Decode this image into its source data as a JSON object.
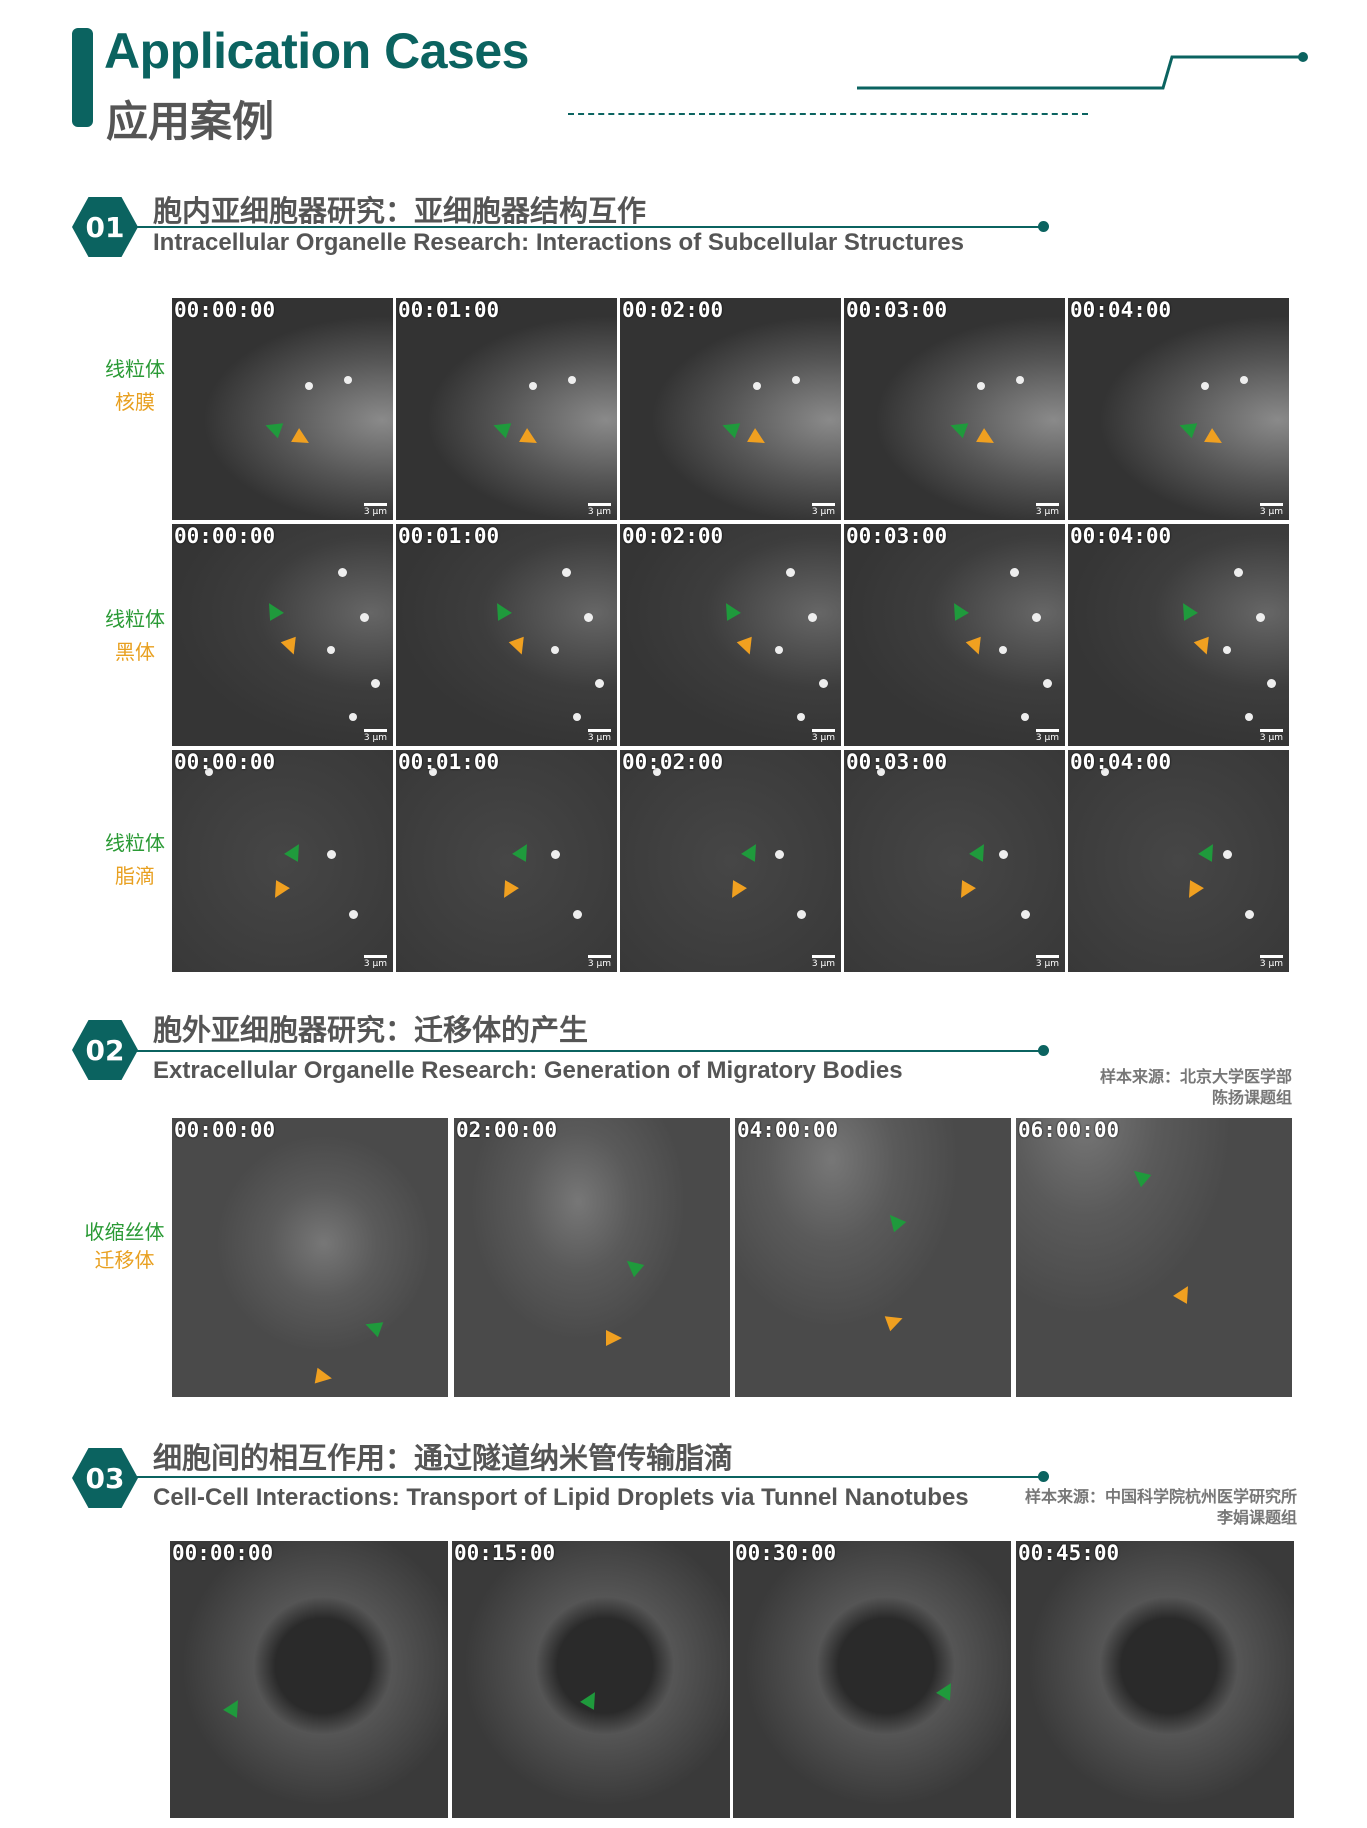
{
  "header": {
    "title_en": "Application Cases",
    "title_cn": "应用案例"
  },
  "colors": {
    "brand": "#0b6360",
    "green_label": "#2a9a35",
    "orange_label": "#e8a020",
    "green_arrow": "#1f9a3c",
    "orange_arrow": "#f0a020"
  },
  "sections": [
    {
      "num": "01",
      "title_cn": "胞内亚细胞器研究：亚细胞器结构互作",
      "title_en": "Intracellular Organelle Research: Interactions of Subcellular Structures",
      "times": [
        "00:00:00",
        "00:01:00",
        "00:02:00",
        "00:03:00",
        "00:04:00"
      ],
      "scale": "3 μm",
      "rows": [
        {
          "green": "线粒体",
          "orange": "核膜"
        },
        {
          "green": "线粒体",
          "orange": "黑体"
        },
        {
          "green": "线粒体",
          "orange": "脂滴"
        }
      ]
    },
    {
      "num": "02",
      "title_cn": "胞外亚细胞器研究：迁移体的产生",
      "title_en": "Extracellular Organelle Research: Generation of Migratory Bodies",
      "source_line1": "样本来源：北京大学医学部",
      "source_line2": "陈扬课题组",
      "times": [
        "00:00:00",
        "02:00:00",
        "04:00:00",
        "06:00:00"
      ],
      "rows": [
        {
          "green": "收缩丝体",
          "orange": "迁移体"
        }
      ]
    },
    {
      "num": "03",
      "title_cn": "细胞间的相互作用：通过隧道纳米管传输脂滴",
      "title_en": "Cell-Cell Interactions: Transport of Lipid Droplets via Tunnel Nanotubes",
      "source_line1": "样本来源：中国科学院杭州医学研究所",
      "source_line2": "李娟课题组",
      "times": [
        "00:00:00",
        "00:15:00",
        "00:30:00",
        "00:45:00"
      ]
    }
  ]
}
